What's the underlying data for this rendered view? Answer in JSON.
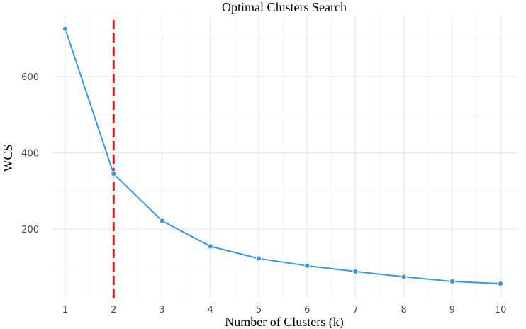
{
  "chart_data": {
    "type": "line",
    "title": "Optimal Clusters Search",
    "xlabel": "Number of Clusters (k)",
    "ylabel": "WCS",
    "x": [
      1,
      2,
      3,
      4,
      5,
      6,
      7,
      8,
      9,
      10
    ],
    "series": [
      {
        "values": [
          725,
          345,
          222,
          155,
          123,
          104,
          89,
          75,
          63,
          57
        ],
        "color": "#3a9ad9"
      }
    ],
    "xlim": [
      0.75,
      10.35
    ],
    "ylim": [
      20,
      760
    ],
    "x_ticks": [
      1,
      2,
      3,
      4,
      5,
      6,
      7,
      8,
      9,
      10
    ],
    "y_ticks": [
      200,
      400,
      600
    ],
    "reference_line": {
      "x": 2,
      "color": "#e01b1b",
      "style": "dashed"
    },
    "grid": true,
    "legend": "none"
  }
}
